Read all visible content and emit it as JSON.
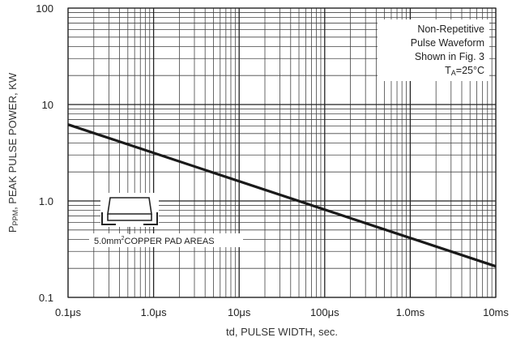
{
  "chart_data": {
    "type": "line",
    "x_scale": "log",
    "y_scale": "log",
    "grid": true,
    "xlim_seconds": [
      1e-07,
      0.01
    ],
    "ylim_kw": [
      0.1,
      100
    ],
    "xlabel": "td, PULSE WIDTH, sec.",
    "ylabel_symbol": "P",
    "ylabel_subscript": "PPM",
    "ylabel_text": ", PEAK PULSE POWER, KW",
    "x_ticks": [
      {
        "value": 1e-07,
        "label": "0.1μs"
      },
      {
        "value": 1e-06,
        "label": "1.0μs"
      },
      {
        "value": 1e-05,
        "label": "10μs"
      },
      {
        "value": 0.0001,
        "label": "100μs"
      },
      {
        "value": 0.001,
        "label": "1.0ms"
      },
      {
        "value": 0.01,
        "label": "10ms"
      }
    ],
    "y_ticks": [
      {
        "value": 0.1,
        "label": "0.1"
      },
      {
        "value": 1,
        "label": "1.0"
      },
      {
        "value": 10,
        "label": "10"
      },
      {
        "value": 100,
        "label": "100"
      }
    ],
    "series": [
      {
        "color": "#1a1a1a",
        "points": [
          {
            "x": 1e-07,
            "y": 6.2
          },
          {
            "x": 0.01,
            "y": 0.21
          }
        ]
      }
    ],
    "annotations": {
      "conditions": [
        "Non-Repetitive",
        "Pulse Waveform",
        "Shown in Fig. 3",
        "T",
        "A",
        "=25°C"
      ],
      "pad_label_a": "5.0mm",
      "pad_label_sup": "2",
      "pad_label_b": "COPPER PAD AREAS",
      "pad_icon": "smd-package-icon"
    }
  }
}
